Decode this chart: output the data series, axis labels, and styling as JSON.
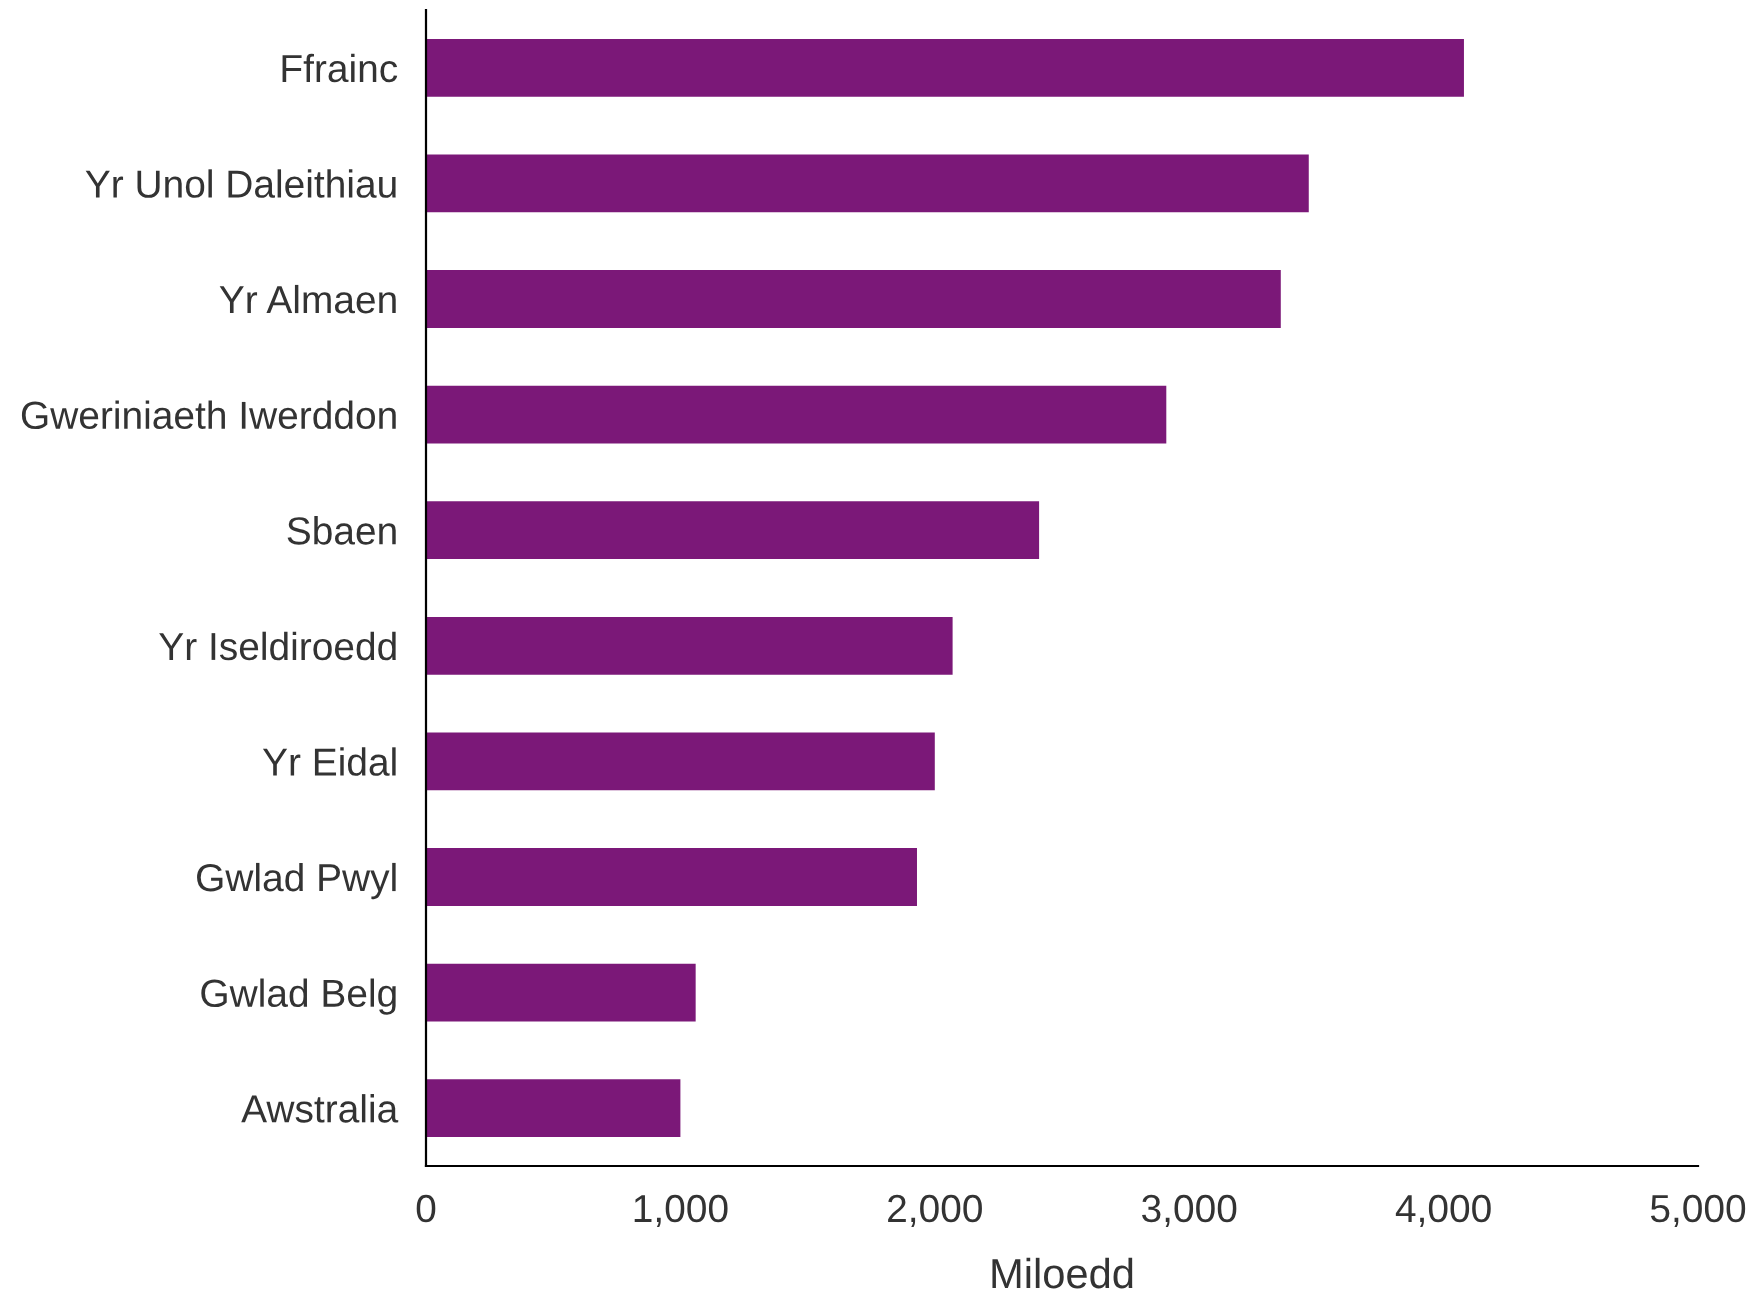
{
  "chart_data": {
    "type": "bar",
    "orientation": "horizontal",
    "xlabel": "Miloedd",
    "categories": [
      "Ffrainc",
      "Yr Unol Daleithiau",
      "Yr Almaen",
      "Gweriniaeth Iwerddon",
      "Sbaen",
      "Yr Iseldiroedd",
      "Yr Eidal",
      "Gwlad Pwyl",
      "Gwlad Belg",
      "Awstralia"
    ],
    "values": [
      4080,
      3470,
      3360,
      2910,
      2410,
      2070,
      2000,
      1930,
      1060,
      1000
    ],
    "color": "#7b1878",
    "xlim": [
      0,
      5000
    ],
    "xticks": [
      {
        "value": 0,
        "label": "0"
      },
      {
        "value": 1000,
        "label": "1,000"
      },
      {
        "value": 2000,
        "label": "2,000"
      },
      {
        "value": 3000,
        "label": "3,000"
      },
      {
        "value": 4000,
        "label": "4,000"
      },
      {
        "value": 5000,
        "label": "5,000"
      }
    ],
    "grid": false
  }
}
